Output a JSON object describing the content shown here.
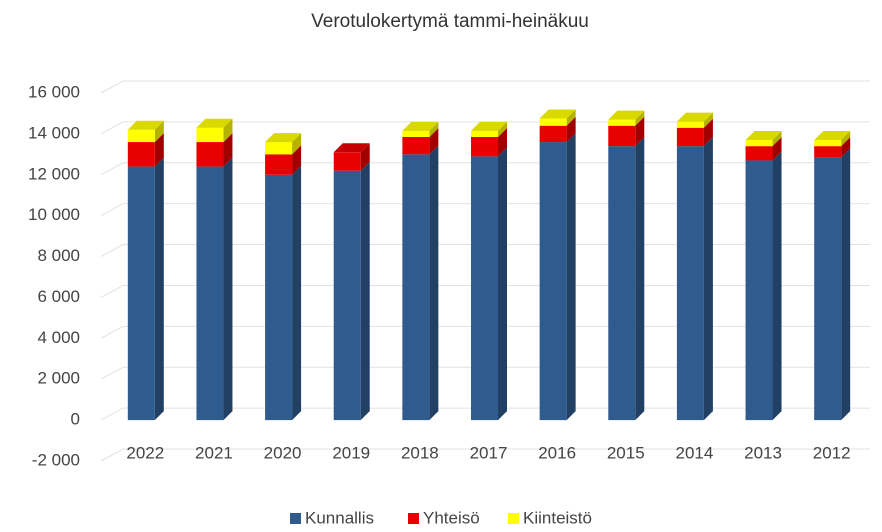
{
  "chart_data": {
    "type": "bar",
    "stacked": true,
    "title": "Verotulokertymä tammi-heinäkuu",
    "categories": [
      "2022",
      "2021",
      "2020",
      "2019",
      "2018",
      "2017",
      "2016",
      "2015",
      "2014",
      "2013",
      "2012"
    ],
    "series": [
      {
        "name": "Kunnallis",
        "color": "#2f5b8f",
        "values": [
          12400,
          12400,
          12000,
          12200,
          13000,
          12900,
          13600,
          13400,
          13400,
          12700,
          12850
        ]
      },
      {
        "name": "Yhteisö",
        "color": "#e80000",
        "values": [
          1200,
          1200,
          1000,
          900,
          850,
          950,
          800,
          1000,
          900,
          700,
          550
        ]
      },
      {
        "name": "Kiinteistö",
        "color": "#ffff00",
        "values": [
          600,
          700,
          600,
          0,
          300,
          300,
          350,
          300,
          300,
          300,
          300
        ]
      }
    ],
    "ylim": [
      -2000,
      16000
    ],
    "yticks": [
      {
        "value": -2000,
        "label": "-2 000"
      },
      0,
      {
        "value": 2000,
        "label": "2 000"
      },
      {
        "value": 4000,
        "label": "4 000"
      },
      {
        "value": 6000,
        "label": "6 000"
      },
      {
        "value": 8000,
        "label": "8 000"
      },
      {
        "value": 10000,
        "label": "10 000"
      },
      {
        "value": 12000,
        "label": "12 000"
      },
      {
        "value": 14000,
        "label": "14 000"
      },
      {
        "value": 16000,
        "label": "16 000"
      }
    ],
    "grid": true,
    "legend": "bottom"
  }
}
